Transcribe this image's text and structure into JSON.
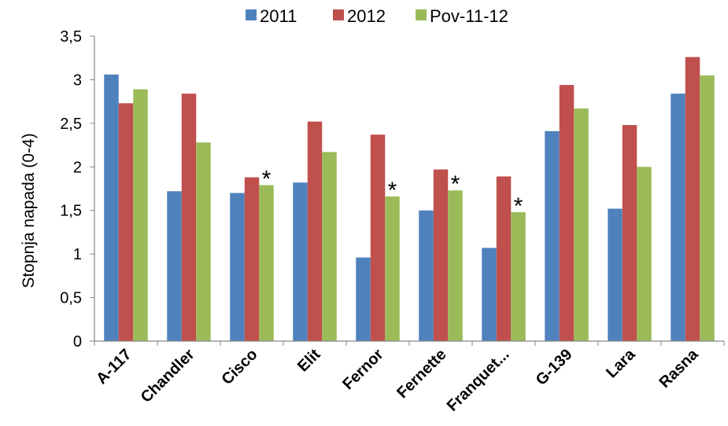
{
  "chart_data": {
    "type": "bar",
    "title": "",
    "xlabel": "",
    "ylabel": "Stopnja napada (0-4)",
    "ylim": [
      0,
      3.5
    ],
    "yticks": [
      "0",
      "0,5",
      "1",
      "1,5",
      "2",
      "2,5",
      "3",
      "3,5"
    ],
    "grid": false,
    "legend_position": "top",
    "categories": [
      "A-117",
      "Chandler",
      "Cisco",
      "Elit",
      "Fernor",
      "Fernette",
      "Franquet...",
      "G-139",
      "Lara",
      "Rasna"
    ],
    "series": [
      {
        "name": "2011",
        "color": "#4f81bd",
        "values": [
          3.06,
          1.72,
          1.7,
          1.82,
          0.96,
          1.5,
          1.07,
          2.41,
          1.52,
          2.84
        ]
      },
      {
        "name": "2012",
        "color": "#c0504d",
        "values": [
          2.73,
          2.84,
          1.88,
          2.52,
          2.37,
          1.97,
          1.89,
          2.94,
          2.48,
          3.26
        ]
      },
      {
        "name": "Pov-11-12",
        "color": "#9bbb59",
        "values": [
          2.89,
          2.28,
          1.79,
          2.17,
          1.66,
          1.73,
          1.48,
          2.67,
          2.0,
          3.05
        ]
      }
    ],
    "annotations": [
      {
        "text": "*",
        "category": "Cisco",
        "series": "Pov-11-12"
      },
      {
        "text": "*",
        "category": "Fernor",
        "series": "Pov-11-12"
      },
      {
        "text": "*",
        "category": "Fernette",
        "series": "Pov-11-12"
      },
      {
        "text": "*",
        "category": "Franquet...",
        "series": "Pov-11-12"
      }
    ]
  }
}
